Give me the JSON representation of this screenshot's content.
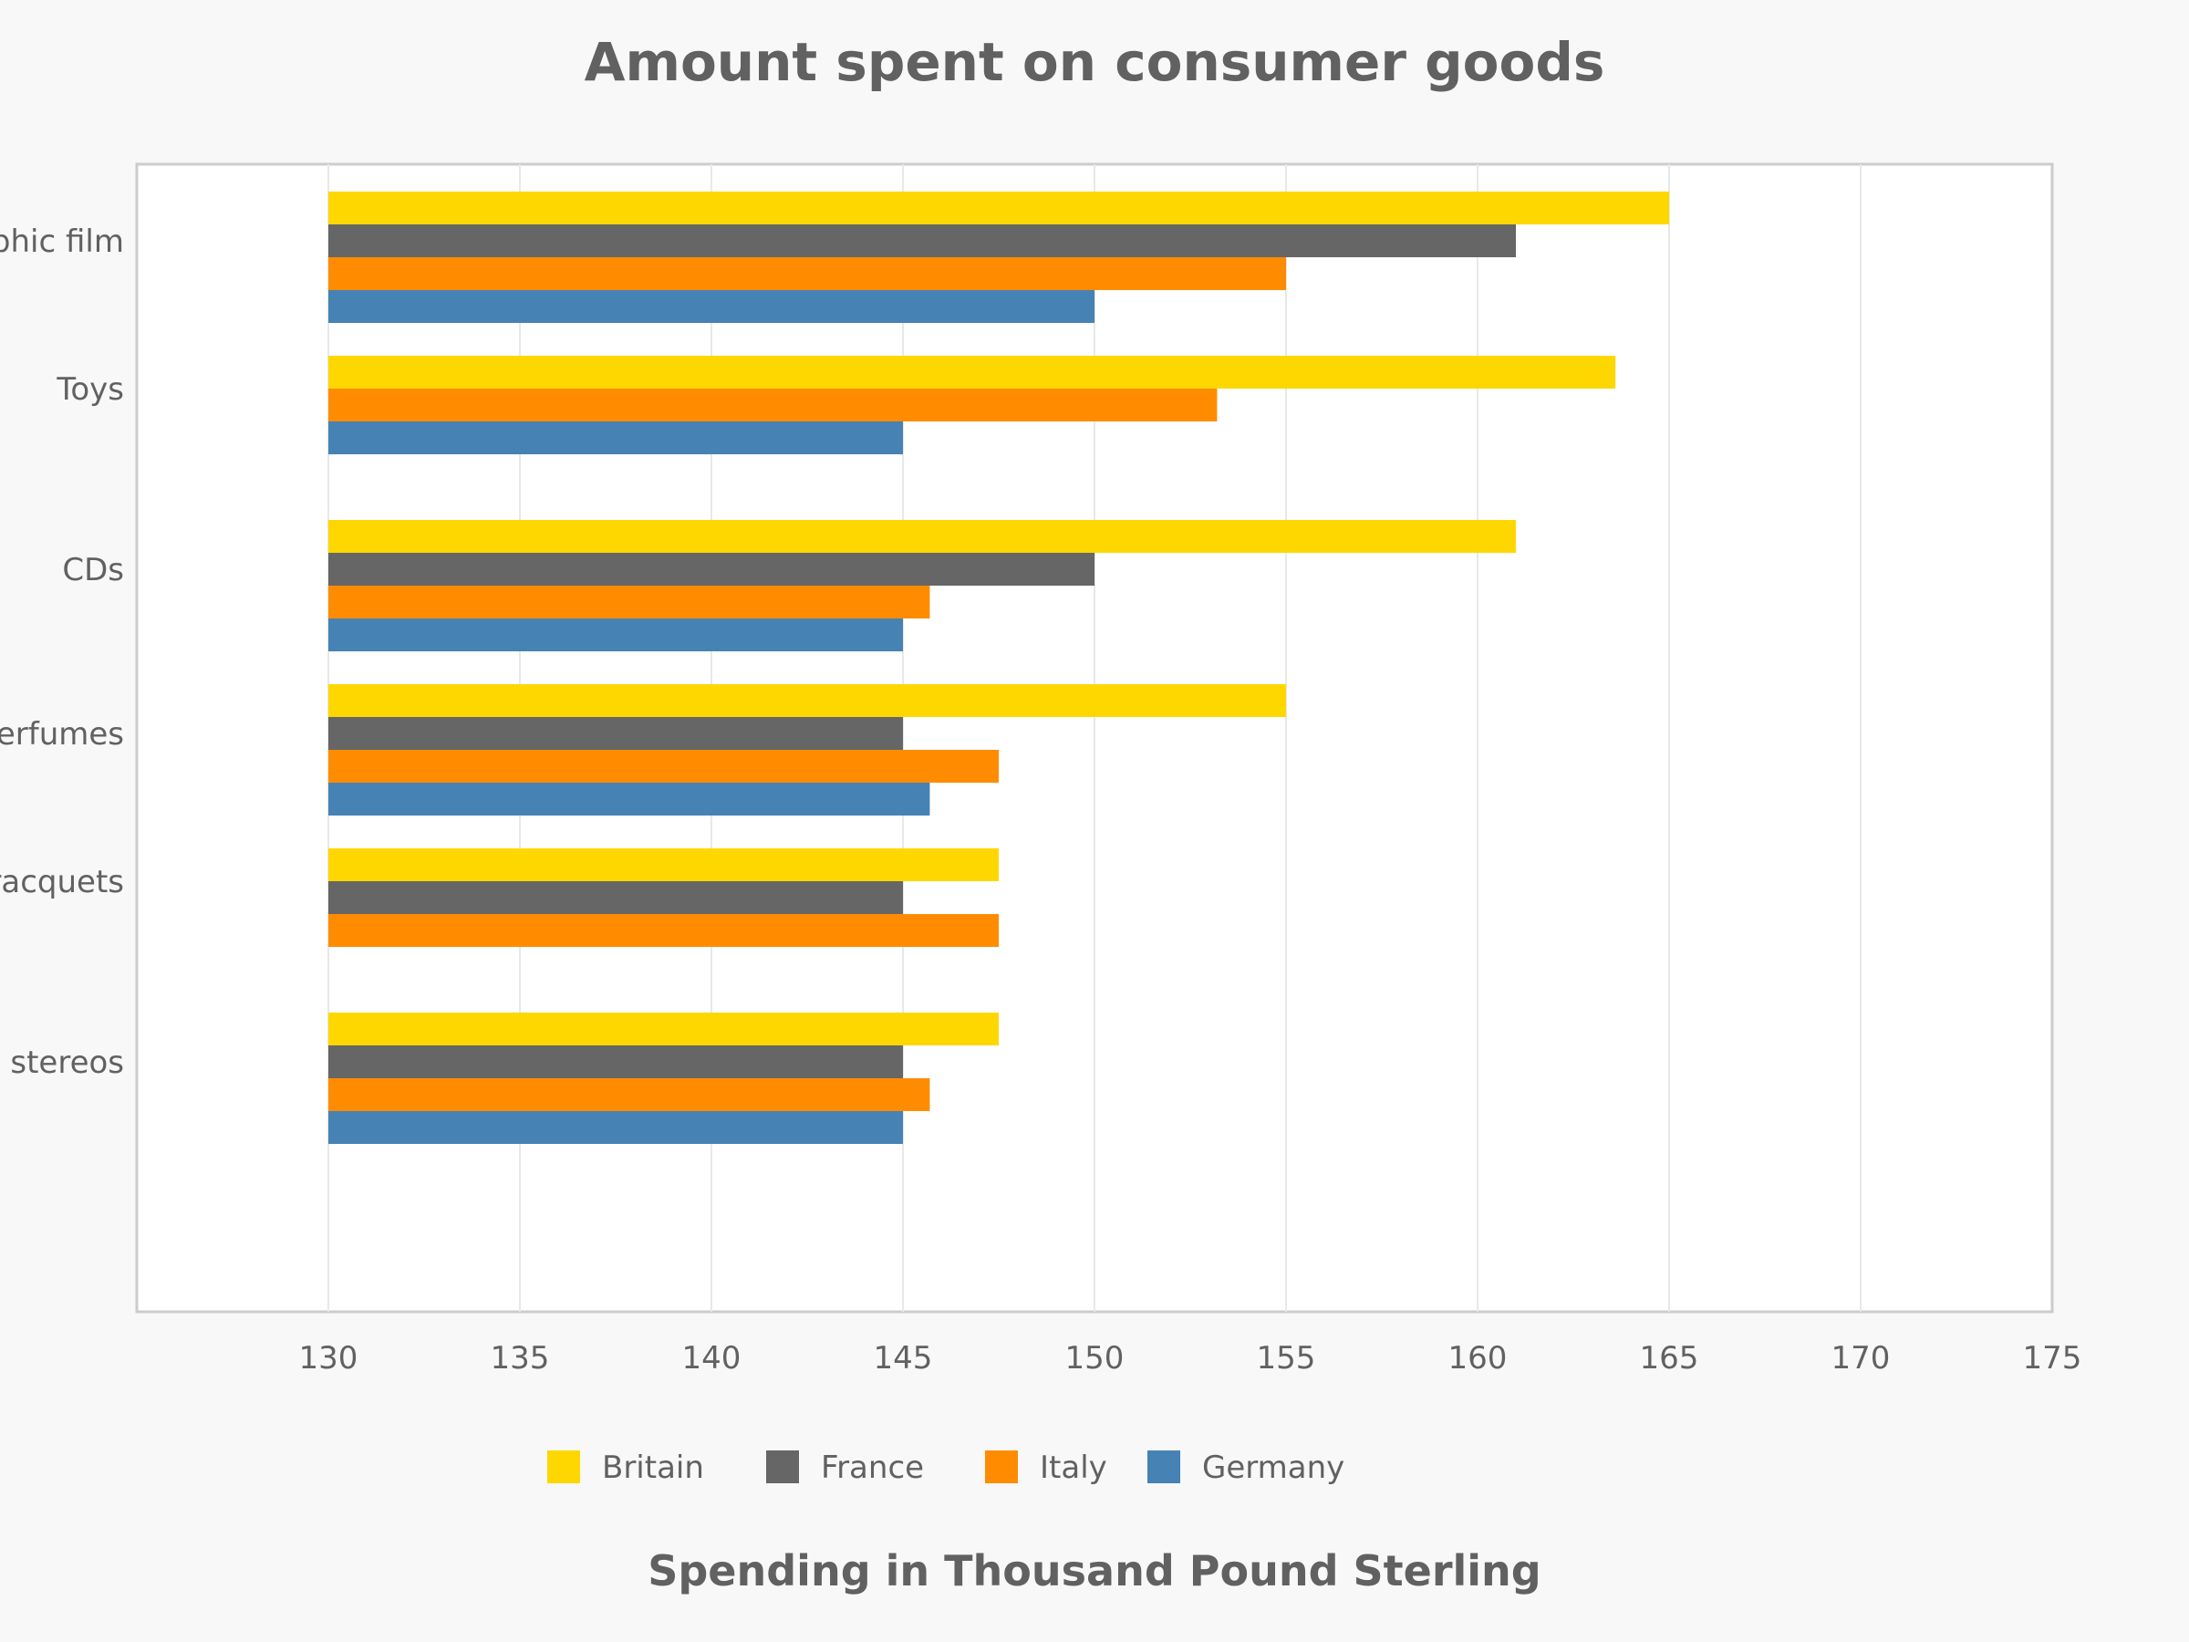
{
  "chart_data": {
    "type": "bar",
    "orientation": "horizontal",
    "title": "Amount spent on consumer goods",
    "xlabel": "Spending in Thousand Pound Sterling",
    "ylabel": "",
    "xlim": [
      125,
      175
    ],
    "xticks": [
      130,
      135,
      140,
      145,
      150,
      155,
      160,
      165,
      170,
      175
    ],
    "grid": true,
    "legend_position": "bottom",
    "categories": [
      "Photographic film",
      "Toys",
      "CDs",
      "Perfumes",
      "Tennis racquets",
      "Personal stereos"
    ],
    "series": [
      {
        "name": "Britain",
        "color": "#FFD700",
        "values": [
          165,
          163.6,
          161,
          155,
          147.5,
          147.5
        ]
      },
      {
        "name": "France",
        "color": "#666666",
        "values": [
          161,
          null,
          150,
          145,
          145,
          145
        ]
      },
      {
        "name": "Italy",
        "color": "#FF8C00",
        "values": [
          155,
          153.2,
          145.7,
          147.5,
          147.5,
          145.7
        ]
      },
      {
        "name": "Germany",
        "color": "#4682B4",
        "values": [
          150,
          145,
          145,
          145.7,
          null,
          145
        ]
      }
    ]
  }
}
